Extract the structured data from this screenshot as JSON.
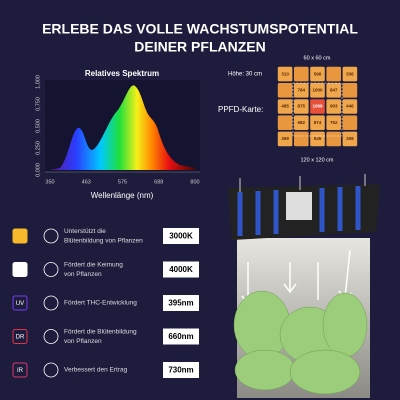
{
  "header": {
    "title_line1": "ERLEBE DAS VOLLE WACHSTUMSPOTENTIAL",
    "title_line2": "DEINER PFLANZEN"
  },
  "spectrum": {
    "title": "Relatives Spektrum",
    "x_label": "Wellenlänge (nm)",
    "y_ticks": [
      "0,000",
      "0,250",
      "0,500",
      "0,750",
      "1,000"
    ],
    "x_ticks": [
      "350",
      "463",
      "575",
      "688",
      "800"
    ]
  },
  "ppfd": {
    "height_label": "Höhe: 30 cm",
    "inner_label": "60 x 60 cm",
    "outer_label": "120 x 120 cm",
    "title": "PPFD-Karte:",
    "rows": [
      [
        "310",
        null,
        "596",
        null,
        "336"
      ],
      [
        null,
        "784",
        "1000",
        "847",
        null
      ],
      [
        "485",
        "875",
        "1069",
        "903",
        "446"
      ],
      [
        null,
        "682",
        "874",
        "752",
        null
      ],
      [
        "269",
        null,
        "545",
        null,
        "308"
      ]
    ]
  },
  "features": [
    {
      "icon": null,
      "color": "#f5b92a",
      "text_line1": "Unterstützt die",
      "text_line2": "Blütenbildung von Pflanzen",
      "badge": "3000K"
    },
    {
      "icon": null,
      "color": "#ffffff",
      "text_line1": "Fördert die Keimung",
      "text_line2": "von Pflanzen",
      "badge": "4000K"
    },
    {
      "icon": "UV",
      "color": "#7a3df0",
      "text_line1": "Fördert THC-Entwicklung",
      "text_line2": null,
      "badge": "395nm"
    },
    {
      "icon": "DR",
      "color": "#e0334a",
      "text_line1": "Fördert die Blütenbildung",
      "text_line2": "von Pflanzen",
      "badge": "660nm"
    },
    {
      "icon": "IR",
      "color": "#e0356e",
      "text_line1": "Verbessert den Ertrag",
      "text_line2": null,
      "badge": "730nm"
    }
  ]
}
